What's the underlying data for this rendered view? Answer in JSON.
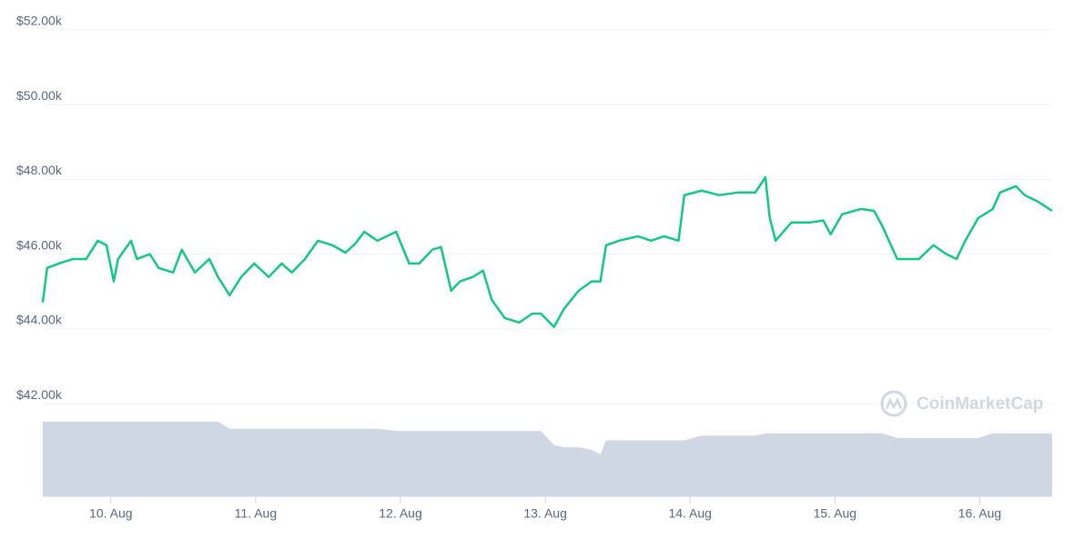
{
  "chart_data": {
    "type": "line",
    "watermark": "CoinMarketCap",
    "x": [
      9.53,
      9.56,
      9.64,
      9.74,
      9.83,
      9.91,
      9.97,
      10.02,
      10.05,
      10.14,
      10.18,
      10.27,
      10.33,
      10.43,
      10.49,
      10.58,
      10.68,
      10.74,
      10.82,
      10.9,
      10.99,
      11.09,
      11.18,
      11.25,
      11.34,
      11.43,
      11.53,
      11.62,
      11.69,
      11.75,
      11.84,
      11.97,
      12.06,
      12.13,
      12.22,
      12.28,
      12.35,
      12.41,
      12.5,
      12.57,
      12.63,
      12.72,
      12.82,
      12.91,
      12.97,
      13.06,
      13.13,
      13.23,
      13.32,
      13.38,
      13.42,
      13.51,
      13.64,
      13.73,
      13.82,
      13.92,
      13.96,
      14.08,
      14.2,
      14.33,
      14.45,
      14.52,
      14.55,
      14.59,
      14.7,
      14.83,
      14.92,
      14.97,
      15.05,
      15.18,
      15.27,
      15.33,
      15.43,
      15.49,
      15.58,
      15.68,
      15.77,
      15.84,
      15.9,
      15.99,
      16.09,
      16.14,
      16.25,
      16.31,
      16.4,
      16.5
    ],
    "series": [
      {
        "color": "#16c784",
        "values": [
          44.71,
          45.63,
          45.75,
          45.87,
          45.87,
          46.36,
          46.24,
          45.27,
          45.87,
          46.36,
          45.87,
          46.0,
          45.63,
          45.51,
          46.12,
          45.51,
          45.87,
          45.39,
          44.9,
          45.39,
          45.75,
          45.39,
          45.75,
          45.51,
          45.87,
          46.36,
          46.24,
          46.04,
          46.29,
          46.6,
          46.36,
          46.6,
          45.75,
          45.75,
          46.12,
          46.19,
          45.02,
          45.27,
          45.39,
          45.56,
          44.78,
          44.29,
          44.17,
          44.41,
          44.41,
          44.05,
          44.54,
          45.02,
          45.27,
          45.27,
          46.24,
          46.36,
          46.48,
          46.36,
          46.48,
          46.36,
          47.58,
          47.7,
          47.58,
          47.65,
          47.65,
          48.06,
          46.97,
          46.36,
          46.85,
          46.85,
          46.9,
          46.53,
          47.07,
          47.21,
          47.16,
          46.73,
          45.87,
          45.87,
          45.87,
          46.24,
          46.0,
          45.87,
          46.36,
          46.97,
          47.21,
          47.65,
          47.82,
          47.58,
          47.41,
          47.16
        ]
      },
      {
        "color": "#cfd6e4",
        "axis": "y2",
        "values": [
          16,
          16,
          16,
          16,
          16,
          16,
          16,
          16,
          16,
          16,
          16,
          16,
          16,
          16,
          16,
          16,
          16,
          16,
          14.5,
          14.5,
          14.5,
          14.5,
          14.5,
          14.5,
          14.5,
          14.5,
          14.5,
          14.5,
          14.5,
          14.5,
          14.5,
          14,
          14,
          14,
          14,
          14,
          14,
          14,
          14,
          14,
          14,
          14,
          14,
          14,
          14,
          11,
          10.5,
          10.5,
          10,
          9,
          12,
          12,
          12,
          12,
          12,
          12,
          12,
          13,
          13,
          13,
          13,
          13.5,
          13.5,
          13.5,
          13.5,
          13.5,
          13.5,
          13.5,
          13.5,
          13.5,
          13.5,
          13.5,
          12.5,
          12.5,
          12.5,
          12.5,
          12.5,
          12.5,
          12.5,
          12.5,
          13.5,
          13.5,
          13.5,
          13.5,
          13.5,
          13.5
        ]
      }
    ],
    "xlim": [
      9.53,
      16.5
    ],
    "xticks": [
      {
        "value": 10,
        "label": "10. Aug"
      },
      {
        "value": 11,
        "label": "11. Aug"
      },
      {
        "value": 12,
        "label": "12. Aug"
      },
      {
        "value": 13,
        "label": "13. Aug"
      },
      {
        "value": 14,
        "label": "14. Aug"
      },
      {
        "value": 15,
        "label": "15. Aug"
      },
      {
        "value": 16,
        "label": "16. Aug"
      }
    ],
    "ylim": [
      39.52,
      52
    ],
    "yticks": [
      {
        "value": 42,
        "label": "$42.00k"
      },
      {
        "value": 44,
        "label": "$44.00k"
      },
      {
        "value": 46,
        "label": "$46.00k"
      },
      {
        "value": 48,
        "label": "$48.00k"
      },
      {
        "value": 50,
        "label": "$50.00k"
      },
      {
        "value": 52,
        "label": "$52.00k"
      }
    ],
    "y2lim": [
      0,
      100
    ],
    "grid": true
  }
}
